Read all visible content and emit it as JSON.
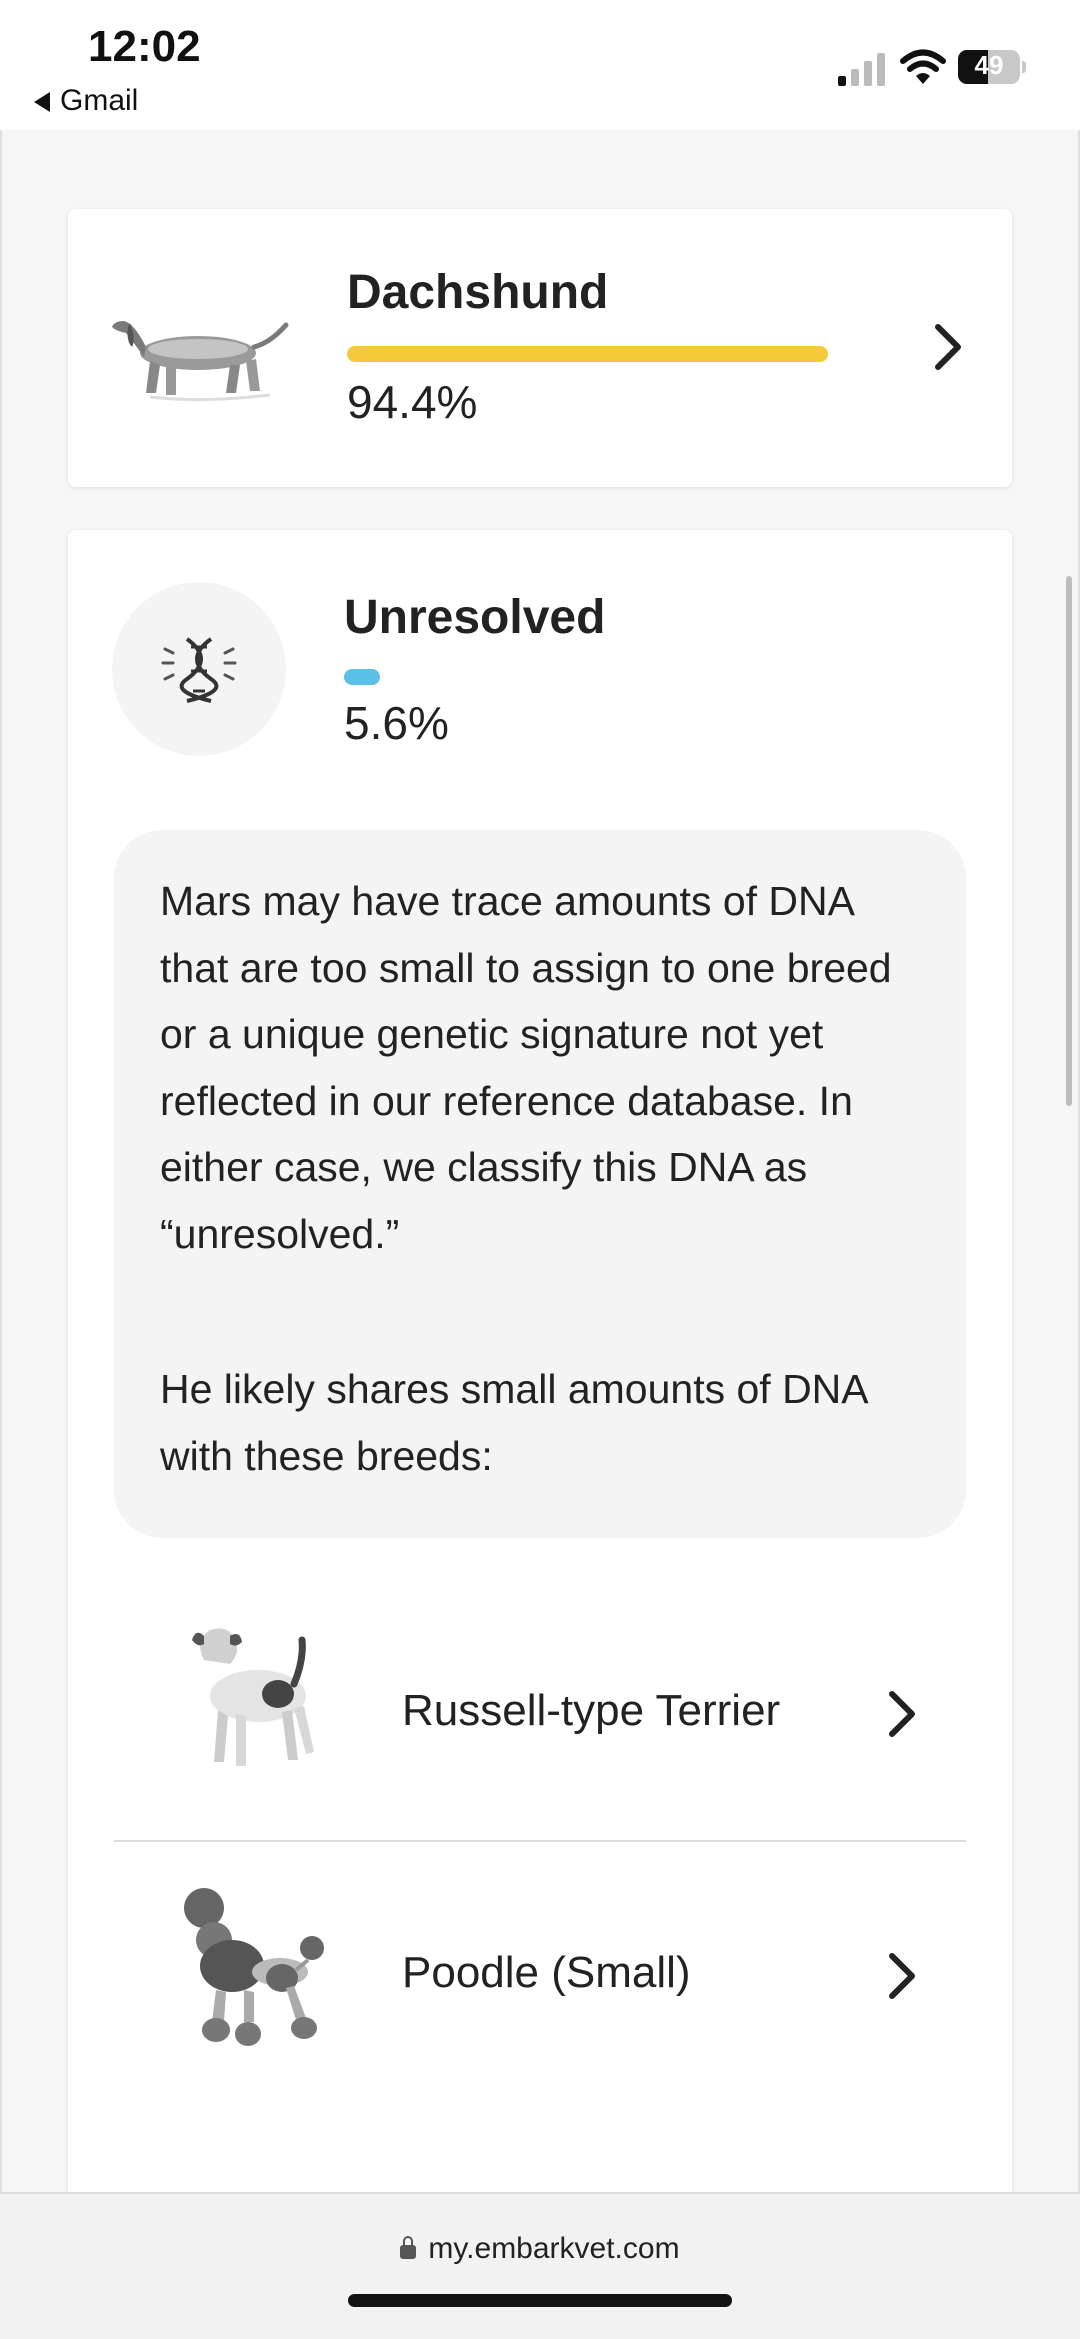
{
  "status_bar": {
    "time": "12:02",
    "back_app": "Gmail",
    "battery": "49",
    "battery_fraction": 0.49
  },
  "top_card": {
    "breed": "Dachshund",
    "percent_label": "94.4%",
    "percent_value": 94.4,
    "bar_color": "#F4C93A",
    "image_icon": "dachshund-illustration"
  },
  "unresolved": {
    "title": "Unresolved",
    "percent_label": "5.6%",
    "percent_value": 5.6,
    "bar_color": "#5BC0E8",
    "icon": "dna-icon",
    "description": "Mars may have trace amounts of DNA that are too small to assign to one breed or a unique genetic signature not yet reflected in our reference database. In either case, we classify this DNA as “unresolved.”",
    "shares_text": "He likely shares small amounts of DNA with these breeds:",
    "breeds": [
      {
        "name": "Russell-type Terrier",
        "image_icon": "terrier-illustration"
      },
      {
        "name": "Poodle (Small)",
        "image_icon": "poodle-illustration"
      }
    ]
  },
  "browser": {
    "url": "my.embarkvet.com"
  }
}
